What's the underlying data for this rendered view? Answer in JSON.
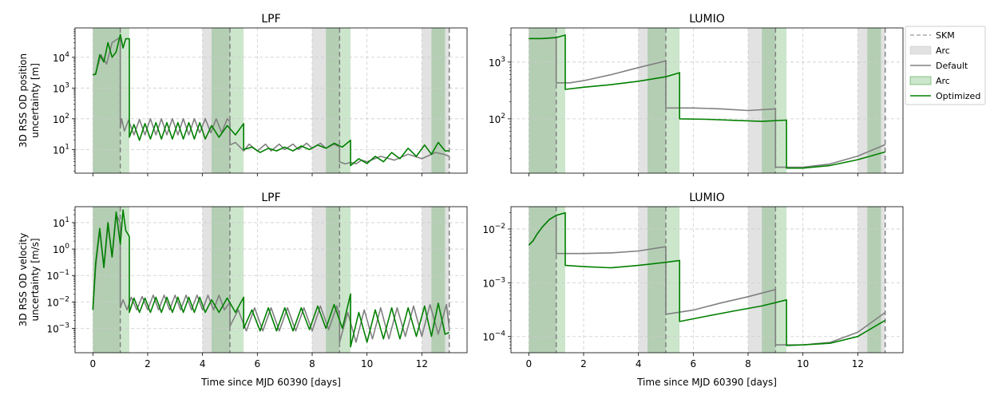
{
  "colors": {
    "default": "#808080",
    "optimized": "#008000",
    "arc_default": "#bfbfbf",
    "arc_optimized": "#008000",
    "skm": "#808080",
    "grid": "#cccccc"
  },
  "legend": {
    "entries": [
      {
        "label": "SKM",
        "kind": "dashed",
        "color": "#aaaaaa"
      },
      {
        "label": "Arc",
        "kind": "patch",
        "color": "#bfbfbf"
      },
      {
        "label": "Default",
        "kind": "line",
        "color": "#808080"
      },
      {
        "label": "Arc",
        "kind": "patch",
        "color": "#008000"
      },
      {
        "label": "Optimized",
        "kind": "line",
        "color": "#008000"
      }
    ]
  },
  "chart_data": [
    {
      "id": "lpf-position",
      "type": "line",
      "title": "LPF",
      "xlabel": "",
      "ylabel": [
        "3D RSS OD position",
        "uncertainty [m]"
      ],
      "yscale": "log",
      "xlim": [
        -0.65,
        13.65
      ],
      "ylim": [
        1.7,
        90000
      ],
      "x_ticks": [
        "0",
        "2",
        "4",
        "6",
        "8",
        "10",
        "12"
      ],
      "y_ticks": [
        {
          "value": 10,
          "label": "10^1"
        },
        {
          "value": 100,
          "label": "10^2"
        },
        {
          "value": 1000,
          "label": "10^3"
        },
        {
          "value": 10000,
          "label": "10^4"
        }
      ],
      "skm_epochs": [
        1.0,
        5.0,
        9.0,
        13.0
      ],
      "arcs_default": [
        [
          0,
          1
        ],
        [
          4,
          5
        ],
        [
          8,
          9
        ],
        [
          12,
          13
        ]
      ],
      "arcs_optimized": [
        [
          0,
          1.33
        ],
        [
          4.33,
          5.5
        ],
        [
          8.5,
          9.4
        ],
        [
          12.35,
          12.85
        ]
      ],
      "series": [
        {
          "name": "Default",
          "color": "#808080",
          "x": [
            0,
            0.1,
            0.3,
            0.5,
            0.7,
            1.0,
            1.0,
            1.05,
            1.15,
            1.3,
            1.5,
            1.7,
            1.9,
            2.1,
            2.3,
            2.5,
            2.7,
            2.9,
            3.1,
            3.3,
            3.5,
            3.7,
            3.9,
            4.1,
            4.3,
            4.5,
            4.7,
            4.9,
            5.0,
            5.0,
            5.2,
            5.5,
            5.7,
            6.0,
            6.3,
            6.5,
            6.8,
            7.0,
            7.3,
            7.5,
            7.8,
            8.0,
            8.3,
            8.5,
            8.8,
            9.0,
            9.0,
            9.2,
            9.4,
            9.6,
            9.8,
            10.0,
            10.5,
            11.0,
            11.5,
            12.0,
            12.5,
            12.8,
            13.0
          ],
          "y": [
            2600,
            3000,
            12000,
            6000,
            30000,
            45000,
            50,
            100,
            40,
            90,
            30,
            95,
            30,
            100,
            30,
            100,
            30,
            100,
            30,
            100,
            30,
            100,
            35,
            100,
            35,
            100,
            35,
            100,
            80,
            14,
            17,
            9,
            15,
            9,
            15,
            9,
            15,
            10,
            15,
            10,
            16,
            11,
            16,
            11,
            15,
            12,
            4,
            3.4,
            3.8,
            3.4,
            4.5,
            4,
            6,
            4.5,
            7,
            5,
            8,
            7,
            6
          ]
        },
        {
          "name": "Optimized",
          "color": "#008000",
          "x": [
            0,
            0.1,
            0.25,
            0.4,
            0.55,
            0.7,
            0.85,
            1.0,
            1.1,
            1.2,
            1.33,
            1.33,
            1.5,
            1.7,
            1.9,
            2.1,
            2.3,
            2.5,
            2.7,
            2.9,
            3.1,
            3.3,
            3.5,
            3.7,
            3.9,
            4.1,
            4.33,
            4.6,
            4.9,
            5.2,
            5.5,
            5.5,
            5.8,
            6.1,
            6.4,
            6.7,
            7.0,
            7.3,
            7.6,
            7.9,
            8.2,
            8.5,
            8.8,
            9.1,
            9.4,
            9.4,
            9.7,
            10.0,
            10.3,
            10.6,
            10.9,
            11.2,
            11.5,
            11.8,
            12.1,
            12.35,
            12.6,
            12.85,
            13.0
          ],
          "y": [
            2700,
            2800,
            12000,
            7000,
            30000,
            10000,
            15000,
            55000,
            20000,
            40000,
            40000,
            25,
            65,
            20,
            70,
            22,
            75,
            22,
            75,
            22,
            75,
            22,
            75,
            22,
            75,
            22,
            60,
            25,
            60,
            30,
            70,
            10,
            12,
            8,
            11,
            9,
            12,
            9,
            13,
            10,
            14,
            11,
            16,
            12,
            20,
            3,
            5,
            3.5,
            6,
            4,
            8,
            5,
            11,
            6,
            14,
            7,
            17,
            9,
            9
          ]
        }
      ]
    },
    {
      "id": "lumio-position",
      "type": "line",
      "title": "LUMIO",
      "xlabel": "",
      "ylabel": [],
      "yscale": "log",
      "xlim": [
        -0.65,
        13.65
      ],
      "ylim": [
        11,
        4000
      ],
      "x_ticks": [
        "0",
        "2",
        "4",
        "6",
        "8",
        "10",
        "12"
      ],
      "y_ticks": [
        {
          "value": 100,
          "label": "10^2"
        },
        {
          "value": 1000,
          "label": "10^3"
        }
      ],
      "skm_epochs": [
        1.0,
        5.0,
        9.0,
        13.0
      ],
      "arcs_default": [
        [
          0,
          1
        ],
        [
          4,
          5
        ],
        [
          8,
          9
        ],
        [
          12,
          13
        ]
      ],
      "arcs_optimized": [
        [
          0,
          1.33
        ],
        [
          4.33,
          5.5
        ],
        [
          8.5,
          9.4
        ],
        [
          12.35,
          12.85
        ]
      ],
      "series": [
        {
          "name": "Default",
          "color": "#808080",
          "x": [
            0,
            0.5,
            1.0,
            1.0,
            1.5,
            2.0,
            3.0,
            4.0,
            5.0,
            5.0,
            6.0,
            7.0,
            8.0,
            9.0,
            9.0,
            10.0,
            11.0,
            12.0,
            13.0
          ],
          "y": [
            2600,
            2600,
            2700,
            430,
            430,
            470,
            600,
            800,
            1050,
            155,
            155,
            150,
            140,
            150,
            14,
            14,
            16,
            22,
            35
          ]
        },
        {
          "name": "Optimized",
          "color": "#008000",
          "x": [
            0,
            0.5,
            1.0,
            1.33,
            1.33,
            2.0,
            3.0,
            4.0,
            5.0,
            5.5,
            5.5,
            6.5,
            7.5,
            8.5,
            9.4,
            9.4,
            10.0,
            11.0,
            12.0,
            13.0
          ],
          "y": [
            2600,
            2600,
            2700,
            3000,
            330,
            360,
            400,
            460,
            550,
            650,
            100,
            98,
            94,
            90,
            95,
            13.5,
            13.5,
            15,
            19,
            26
          ]
        }
      ]
    },
    {
      "id": "lpf-velocity",
      "type": "line",
      "title": "LPF",
      "xlabel": "Time since MJD 60390 [days]",
      "ylabel": [
        "3D RSS OD velocity",
        "uncertainty [m/s]"
      ],
      "yscale": "log",
      "xlim": [
        -0.65,
        13.65
      ],
      "ylim": [
        0.00012,
        40
      ],
      "x_ticks": [
        "0",
        "2",
        "4",
        "6",
        "8",
        "10",
        "12"
      ],
      "y_ticks": [
        {
          "value": 0.001,
          "label": "10^-3"
        },
        {
          "value": 0.01,
          "label": "10^-2"
        },
        {
          "value": 0.1,
          "label": "10^-1"
        },
        {
          "value": 1,
          "label": "10^0"
        },
        {
          "value": 10,
          "label": "10^1"
        }
      ],
      "skm_epochs": [
        1.0,
        5.0,
        9.0,
        13.0
      ],
      "arcs_default": [
        [
          0,
          1
        ],
        [
          4,
          5
        ],
        [
          8,
          9
        ],
        [
          12,
          13
        ]
      ],
      "arcs_optimized": [
        [
          0,
          1.33
        ],
        [
          4.33,
          5.5
        ],
        [
          8.5,
          9.4
        ],
        [
          12.35,
          12.85
        ]
      ],
      "series": [
        {
          "name": "Default",
          "color": "#808080",
          "x": [
            0,
            0.1,
            0.25,
            0.4,
            0.55,
            0.7,
            0.85,
            1.0,
            1.0,
            1.1,
            1.25,
            1.4,
            1.6,
            1.8,
            2.0,
            2.2,
            2.4,
            2.6,
            2.8,
            3.0,
            3.2,
            3.4,
            3.6,
            3.8,
            4.0,
            4.2,
            4.4,
            4.6,
            4.8,
            5.0,
            5.0,
            5.3,
            5.6,
            5.9,
            6.2,
            6.5,
            6.8,
            7.1,
            7.4,
            7.7,
            8.0,
            8.3,
            8.6,
            8.9,
            9.0,
            9.0,
            9.3,
            9.6,
            9.9,
            10.2,
            10.5,
            10.8,
            11.1,
            11.4,
            11.7,
            12.0,
            12.3,
            12.6,
            12.9,
            13.0
          ],
          "y": [
            0.005,
            0.2,
            5,
            0.2,
            8,
            0.5,
            20,
            10,
            0.006,
            0.012,
            0.005,
            0.015,
            0.005,
            0.016,
            0.005,
            0.018,
            0.005,
            0.018,
            0.005,
            0.018,
            0.005,
            0.018,
            0.005,
            0.018,
            0.005,
            0.018,
            0.005,
            0.018,
            0.005,
            0.01,
            0.0012,
            0.005,
            0.0008,
            0.006,
            0.0008,
            0.006,
            0.0008,
            0.006,
            0.0008,
            0.006,
            0.0008,
            0.007,
            0.0009,
            0.007,
            0.003,
            0.0003,
            0.004,
            0.0003,
            0.005,
            0.0004,
            0.006,
            0.0004,
            0.006,
            0.0005,
            0.007,
            0.0005,
            0.008,
            0.0006,
            0.008,
            0.001
          ]
        },
        {
          "name": "Optimized",
          "color": "#008000",
          "x": [
            0,
            0.1,
            0.25,
            0.4,
            0.55,
            0.7,
            0.85,
            1.0,
            1.1,
            1.2,
            1.33,
            1.33,
            1.5,
            1.7,
            1.9,
            2.1,
            2.3,
            2.5,
            2.7,
            2.9,
            3.1,
            3.3,
            3.5,
            3.7,
            3.9,
            4.1,
            4.33,
            4.6,
            4.9,
            5.2,
            5.5,
            5.5,
            5.8,
            6.1,
            6.4,
            6.7,
            7.0,
            7.3,
            7.6,
            7.9,
            8.2,
            8.5,
            8.8,
            9.1,
            9.4,
            9.4,
            9.7,
            10.0,
            10.3,
            10.6,
            10.9,
            11.2,
            11.5,
            11.8,
            12.1,
            12.35,
            12.6,
            12.85,
            13.0
          ],
          "y": [
            0.005,
            0.3,
            6,
            0.2,
            10,
            0.5,
            25,
            1.5,
            30,
            5,
            3,
            0.004,
            0.014,
            0.004,
            0.014,
            0.004,
            0.015,
            0.004,
            0.015,
            0.004,
            0.015,
            0.004,
            0.015,
            0.004,
            0.015,
            0.004,
            0.012,
            0.004,
            0.014,
            0.004,
            0.015,
            0.001,
            0.005,
            0.0008,
            0.006,
            0.0008,
            0.006,
            0.0008,
            0.006,
            0.0009,
            0.007,
            0.001,
            0.008,
            0.001,
            0.02,
            0.0002,
            0.004,
            0.0003,
            0.005,
            0.0004,
            0.006,
            0.0004,
            0.006,
            0.0005,
            0.007,
            0.0005,
            0.009,
            0.0006,
            0.0007
          ]
        }
      ]
    },
    {
      "id": "lumio-velocity",
      "type": "line",
      "title": "LUMIO",
      "xlabel": "Time since MJD 60390 [days]",
      "ylabel": [],
      "yscale": "log",
      "xlim": [
        -0.65,
        13.65
      ],
      "ylim": [
        5e-05,
        0.026
      ],
      "x_ticks": [
        "0",
        "2",
        "4",
        "6",
        "8",
        "10",
        "12"
      ],
      "y_ticks": [
        {
          "value": 0.0001,
          "label": "10^-4"
        },
        {
          "value": 0.001,
          "label": "10^-3"
        },
        {
          "value": 0.01,
          "label": "10^-2"
        }
      ],
      "skm_epochs": [
        1.0,
        5.0,
        9.0,
        13.0
      ],
      "arcs_default": [
        [
          0,
          1
        ],
        [
          4,
          5
        ],
        [
          8,
          9
        ],
        [
          12,
          13
        ]
      ],
      "arcs_optimized": [
        [
          0,
          1.33
        ],
        [
          4.33,
          5.5
        ],
        [
          8.5,
          9.4
        ],
        [
          12.35,
          12.85
        ]
      ],
      "series": [
        {
          "name": "Default",
          "color": "#808080",
          "x": [
            0,
            0.15,
            0.3,
            0.5,
            0.75,
            1.0,
            1.0,
            2.0,
            3.0,
            4.0,
            5.0,
            5.0,
            6.0,
            7.0,
            8.0,
            9.0,
            9.0,
            10.0,
            11.0,
            12.0,
            13.0
          ],
          "y": [
            0.005,
            0.006,
            0.008,
            0.011,
            0.015,
            0.018,
            0.0035,
            0.0035,
            0.0036,
            0.0039,
            0.0047,
            0.00026,
            0.00031,
            0.00042,
            0.00055,
            0.00075,
            7e-05,
            7e-05,
            7.8e-05,
            0.00012,
            0.00028
          ]
        },
        {
          "name": "Optimized",
          "color": "#008000",
          "x": [
            0,
            0.15,
            0.3,
            0.5,
            0.75,
            1.0,
            1.33,
            1.33,
            2.0,
            3.0,
            4.0,
            5.0,
            5.5,
            5.5,
            6.5,
            7.5,
            8.5,
            9.4,
            9.4,
            10.0,
            11.0,
            12.0,
            13.0
          ],
          "y": [
            0.005,
            0.006,
            0.008,
            0.011,
            0.015,
            0.018,
            0.02,
            0.0021,
            0.002,
            0.0019,
            0.0021,
            0.0024,
            0.0026,
            0.00019,
            0.00024,
            0.0003,
            0.00037,
            0.00048,
            6.8e-05,
            7e-05,
            7.5e-05,
            0.0001,
            0.0002
          ]
        }
      ]
    }
  ]
}
